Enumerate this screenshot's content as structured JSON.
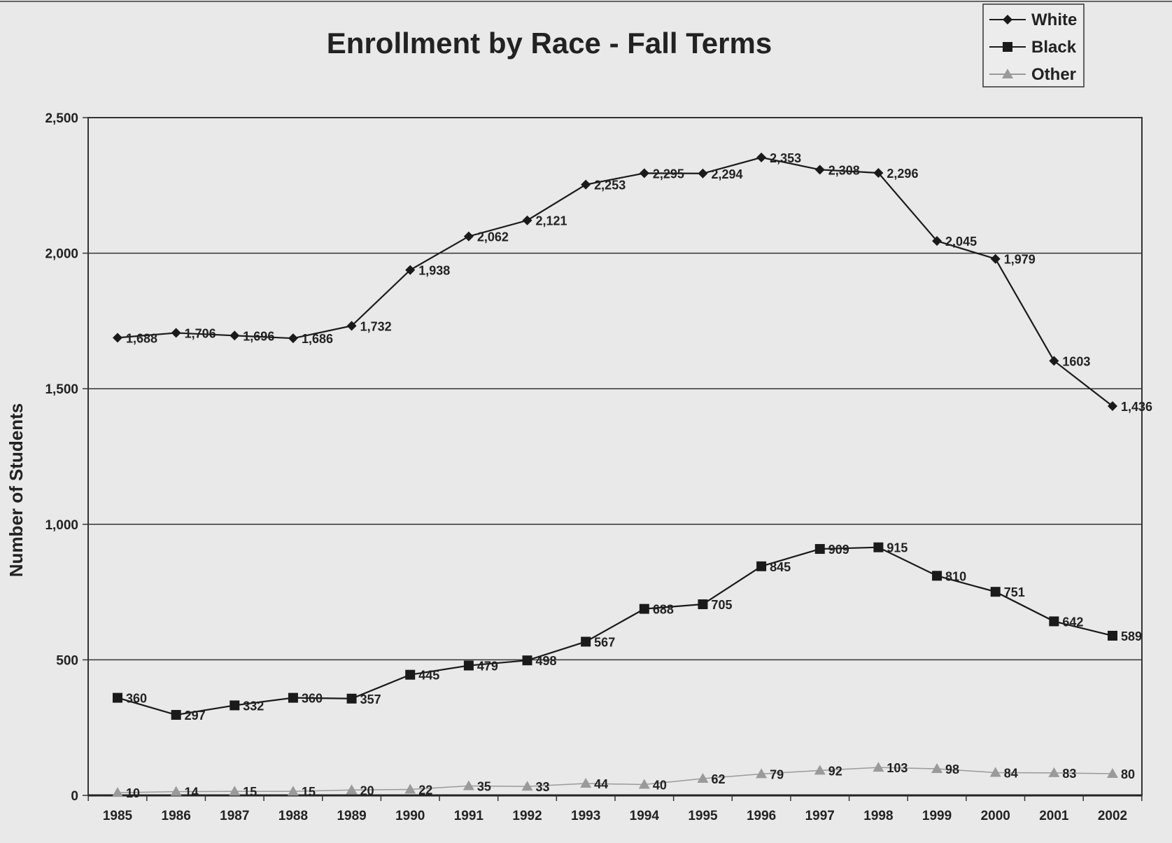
{
  "chart_data": {
    "type": "line",
    "title": "Enrollment by Race - Fall Terms",
    "xlabel": "",
    "ylabel": "Number of Students",
    "ylim": [
      0,
      2500
    ],
    "yticks": [
      "0",
      "500",
      "1,000",
      "1,500",
      "2,000",
      "2,500"
    ],
    "ytick_values": [
      0,
      500,
      1000,
      1500,
      2000,
      2500
    ],
    "grid": true,
    "legend_position": "top-right",
    "categories": [
      "1985",
      "1986",
      "1987",
      "1988",
      "1989",
      "1990",
      "1991",
      "1992",
      "1993",
      "1994",
      "1995",
      "1996",
      "1997",
      "1998",
      "1999",
      "2000",
      "2001",
      "2002"
    ],
    "series": [
      {
        "name": "White",
        "color": "#1a1a1a",
        "marker": "diamond",
        "values": [
          1688,
          1706,
          1696,
          1686,
          1732,
          1938,
          2062,
          2121,
          2253,
          2295,
          2294,
          2353,
          2308,
          2296,
          2045,
          1979,
          1603,
          1436
        ],
        "labels": [
          "1,688",
          "1,706",
          "1,696",
          "1,686",
          "1,732",
          "1,938",
          "2,062",
          "2,121",
          "2,253",
          "2,295",
          "2,294",
          "2,353",
          "2,308",
          "2,296",
          "2,045",
          "1,979",
          "1603",
          "1,436"
        ]
      },
      {
        "name": "Black",
        "color": "#1a1a1a",
        "marker": "square",
        "values": [
          360,
          297,
          332,
          360,
          357,
          445,
          479,
          498,
          567,
          688,
          705,
          845,
          909,
          915,
          810,
          751,
          642,
          589
        ],
        "labels": [
          "360",
          "297",
          "332",
          "360",
          "357",
          "445",
          "479",
          "498",
          "567",
          "688",
          "705",
          "845",
          "909",
          "915",
          "810",
          "751",
          "642",
          "589"
        ]
      },
      {
        "name": "Other",
        "color": "#9a9a9a",
        "marker": "triangle",
        "values": [
          10,
          14,
          15,
          15,
          20,
          22,
          35,
          33,
          44,
          40,
          62,
          79,
          92,
          103,
          98,
          84,
          83,
          80
        ],
        "labels": [
          "10",
          "14",
          "15",
          "15",
          "20",
          "22",
          "35",
          "33",
          "44",
          "40",
          "62",
          "79",
          "92",
          "103",
          "98",
          "84",
          "83",
          "80"
        ]
      }
    ]
  }
}
